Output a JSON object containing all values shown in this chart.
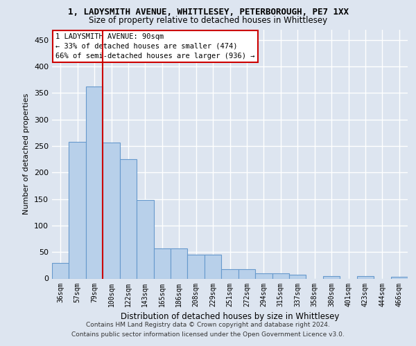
{
  "title_line1": "1, LADYSMITH AVENUE, WHITTLESEY, PETERBOROUGH, PE7 1XX",
  "title_line2": "Size of property relative to detached houses in Whittlesey",
  "xlabel": "Distribution of detached houses by size in Whittlesey",
  "ylabel": "Number of detached properties",
  "categories": [
    "36sqm",
    "57sqm",
    "79sqm",
    "100sqm",
    "122sqm",
    "143sqm",
    "165sqm",
    "186sqm",
    "208sqm",
    "229sqm",
    "251sqm",
    "272sqm",
    "294sqm",
    "315sqm",
    "337sqm",
    "358sqm",
    "380sqm",
    "401sqm",
    "423sqm",
    "444sqm",
    "466sqm"
  ],
  "values": [
    30,
    258,
    362,
    256,
    225,
    148,
    57,
    57,
    45,
    45,
    18,
    18,
    10,
    10,
    7,
    0,
    5,
    0,
    4,
    0,
    3
  ],
  "bar_color": "#b8d0ea",
  "bar_edge_color": "#6699cc",
  "vline_x": 2.5,
  "vline_color": "#cc0000",
  "annotation_line1": "1 LADYSMITH AVENUE: 90sqm",
  "annotation_line2": "← 33% of detached houses are smaller (474)",
  "annotation_line3": "66% of semi-detached houses are larger (936) →",
  "annotation_box_facecolor": "#ffffff",
  "annotation_box_edgecolor": "#cc0000",
  "footer_line1": "Contains HM Land Registry data © Crown copyright and database right 2024.",
  "footer_line2": "Contains public sector information licensed under the Open Government Licence v3.0.",
  "bg_color": "#dde5f0",
  "grid_color": "#ffffff",
  "ylim": [
    0,
    470
  ],
  "yticks": [
    0,
    50,
    100,
    150,
    200,
    250,
    300,
    350,
    400,
    450
  ]
}
